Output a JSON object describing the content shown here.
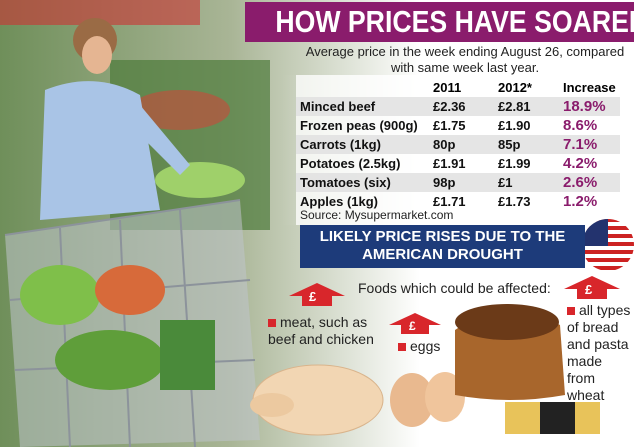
{
  "header": {
    "title": "HOW PRICES HAVE SOARED",
    "subtitle": "Average price in the week ending August 26, compared with same week last year."
  },
  "table": {
    "columns": [
      "2011",
      "2012*",
      "Increase"
    ],
    "rows": [
      [
        "Minced beef",
        "£2.36",
        "£2.81",
        "18.9%"
      ],
      [
        "Frozen peas (900g)",
        "£1.75",
        "£1.90",
        "8.6%"
      ],
      [
        "Carrots (1kg)",
        "80p",
        "85p",
        "7.1%"
      ],
      [
        "Potatoes (2.5kg)",
        "£1.91",
        "£1.99",
        "4.2%"
      ],
      [
        "Tomatoes (six)",
        "98p",
        "£1",
        "2.6%"
      ],
      [
        "Apples (1kg)",
        "£1.71",
        "£1.73",
        "1.2%"
      ]
    ]
  },
  "source": "Source: Mysupermarket.com",
  "drought": {
    "title": "LIKELY PRICE RISES DUE TO THE AMERICAN DROUGHT",
    "subtitle": "Foods which could be affected:",
    "items": [
      "meat, such as beef and chicken",
      "eggs",
      "all types of bread and pasta made from wheat"
    ]
  },
  "icon": "£"
}
